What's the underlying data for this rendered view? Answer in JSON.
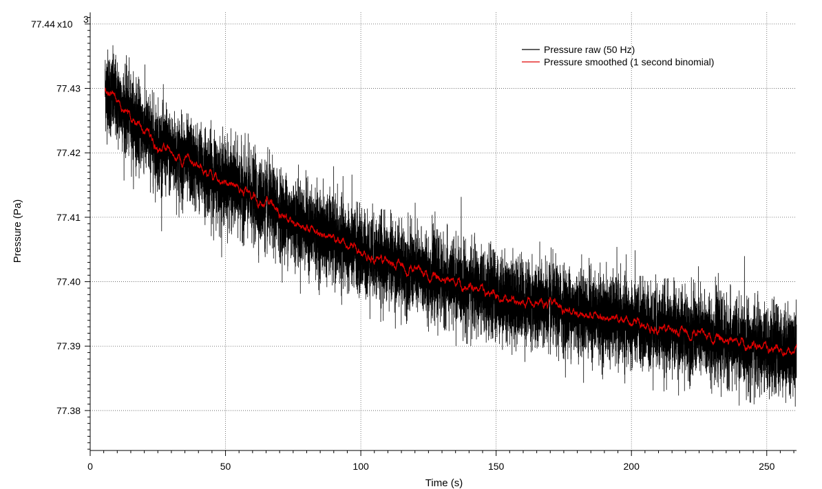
{
  "chart_data": {
    "type": "line",
    "xlabel": "Time (s)",
    "ylabel": "Pressure (Pa)",
    "y_multiplier_label": "x10",
    "y_multiplier_exponent": "3",
    "xlim": [
      0,
      261
    ],
    "ylim": [
      77.3738,
      77.4418
    ],
    "x_ticks": [
      0,
      50,
      100,
      150,
      200,
      250
    ],
    "x_tick_labels": [
      "0",
      "50",
      "100",
      "150",
      "200",
      "250"
    ],
    "y_ticks": [
      77.38,
      77.39,
      77.4,
      77.41,
      77.42,
      77.43,
      77.44
    ],
    "y_tick_labels": [
      "77.38",
      "77.39",
      "77.40",
      "77.41",
      "77.42",
      "77.43",
      "77.44"
    ],
    "grid": true,
    "legend_position": "top-right",
    "series": [
      {
        "name": "Pressure raw (50 Hz)",
        "color": "#000000",
        "x_start": 5.5,
        "x_end": 261,
        "sample_rate_hz": 50,
        "noise_std": 0.0032,
        "trend_x": [
          5.5,
          10,
          25,
          50,
          75,
          100,
          125,
          150,
          175,
          200,
          225,
          250,
          261
        ],
        "trend_y": [
          77.43,
          77.428,
          77.421,
          77.4155,
          77.4095,
          77.4045,
          77.401,
          77.3978,
          77.3958,
          77.3935,
          77.3918,
          77.3895,
          77.3893
        ]
      },
      {
        "name": "Pressure smoothed (1 second binomial)",
        "color": "#e00000",
        "x_start": 5.5,
        "x_end": 261,
        "sample_rate_hz": 50,
        "trend_x": [
          5.5,
          10,
          25,
          50,
          75,
          100,
          125,
          150,
          175,
          200,
          225,
          250,
          261
        ],
        "trend_y": [
          77.43,
          77.428,
          77.421,
          77.4155,
          77.4095,
          77.4045,
          77.401,
          77.3978,
          77.3958,
          77.3935,
          77.3918,
          77.3895,
          77.3893
        ]
      }
    ]
  }
}
